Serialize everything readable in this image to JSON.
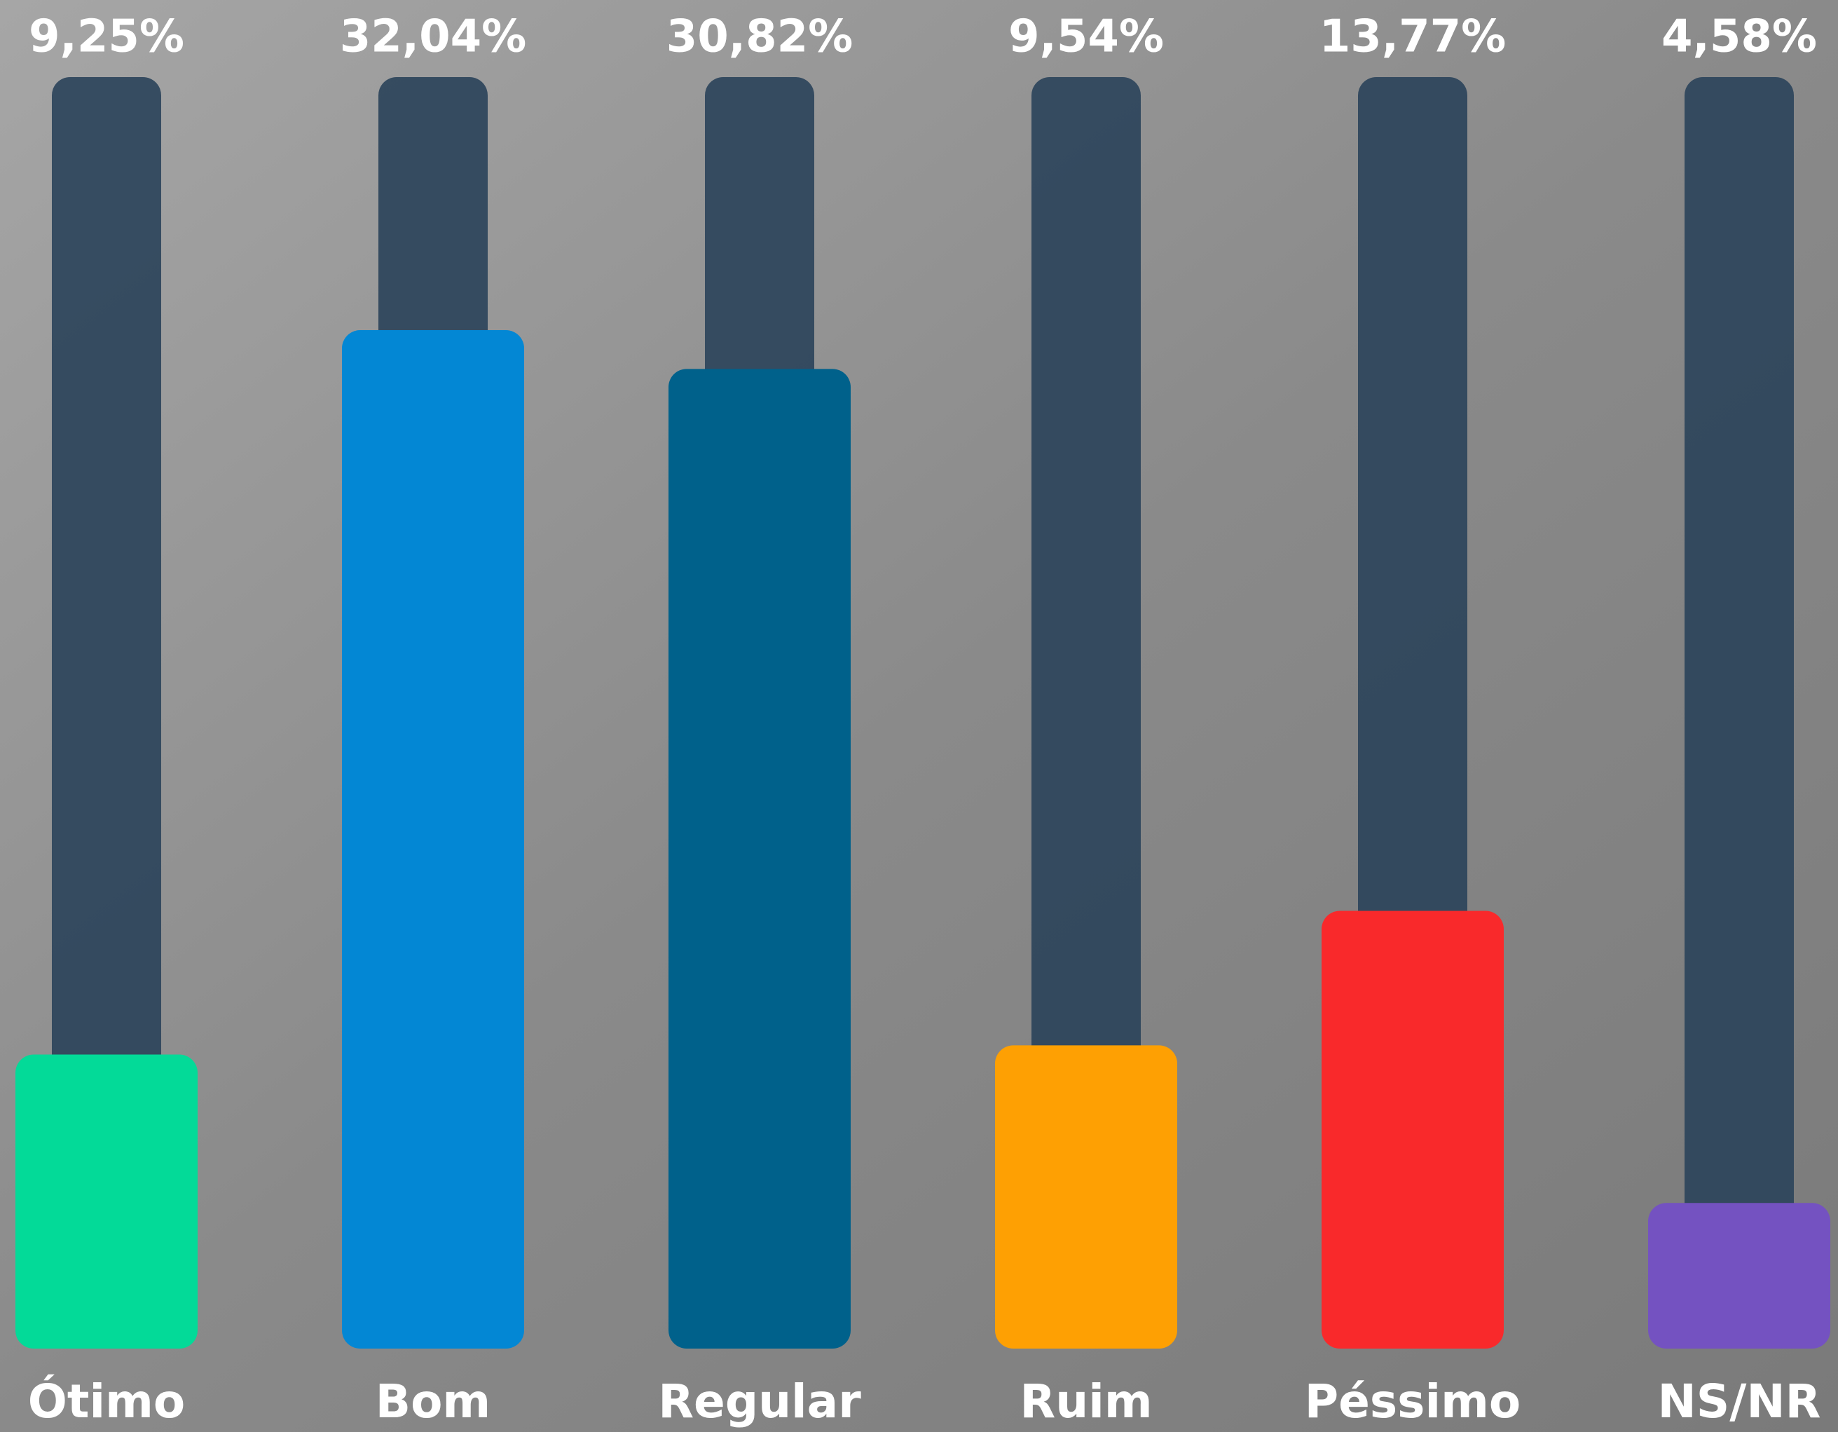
{
  "chart_data": {
    "type": "bar",
    "categories": [
      "Ótimo",
      "Bom",
      "Regular",
      "Ruim",
      "Péssimo",
      "NS/NR"
    ],
    "values": [
      9.25,
      32.04,
      30.82,
      9.54,
      13.77,
      4.58
    ],
    "value_labels": [
      "9,25%",
      "32,04%",
      "30,82%",
      "9,54%",
      "13,77%",
      "4,58%"
    ],
    "colors": [
      "#03da98",
      "#0387d4",
      "#00618b",
      "#fea003",
      "#f9292b",
      "#7452c1"
    ],
    "ylim": [
      0,
      40
    ]
  }
}
